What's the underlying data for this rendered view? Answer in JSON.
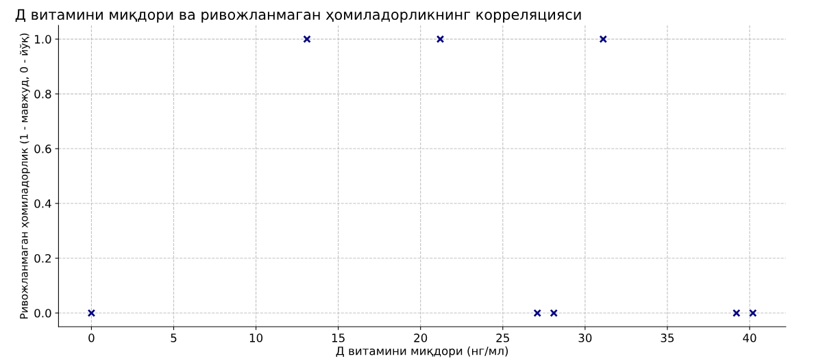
{
  "chart_data": {
    "type": "scatter",
    "title": "Д витамини миқдори ва ривожланмаган ҳомиладорликнинг корреляцияси",
    "xlabel": "Д витамини миқдори (нг/мл)",
    "ylabel": "Ривожланмаган ҳомиладорлик (1 - мавжуд, 0 - йўқ)",
    "x": [
      0,
      13.1,
      21.2,
      27.1,
      28.1,
      31.1,
      39.2,
      40.2
    ],
    "values": [
      0,
      1,
      1,
      0,
      0,
      1,
      0,
      0
    ],
    "color": "#000080",
    "marker": "cross",
    "grid": true,
    "xlim": [
      -2,
      42.2
    ],
    "xticks": [
      0,
      5,
      10,
      15,
      20,
      25,
      30,
      35,
      40
    ],
    "ylim": [
      -0.05,
      1.05
    ],
    "yticks": [
      {
        "value": 0,
        "label": "0.0"
      },
      0.2,
      0.4,
      0.6,
      0.8,
      {
        "value": 1,
        "label": "1.0"
      }
    ]
  }
}
